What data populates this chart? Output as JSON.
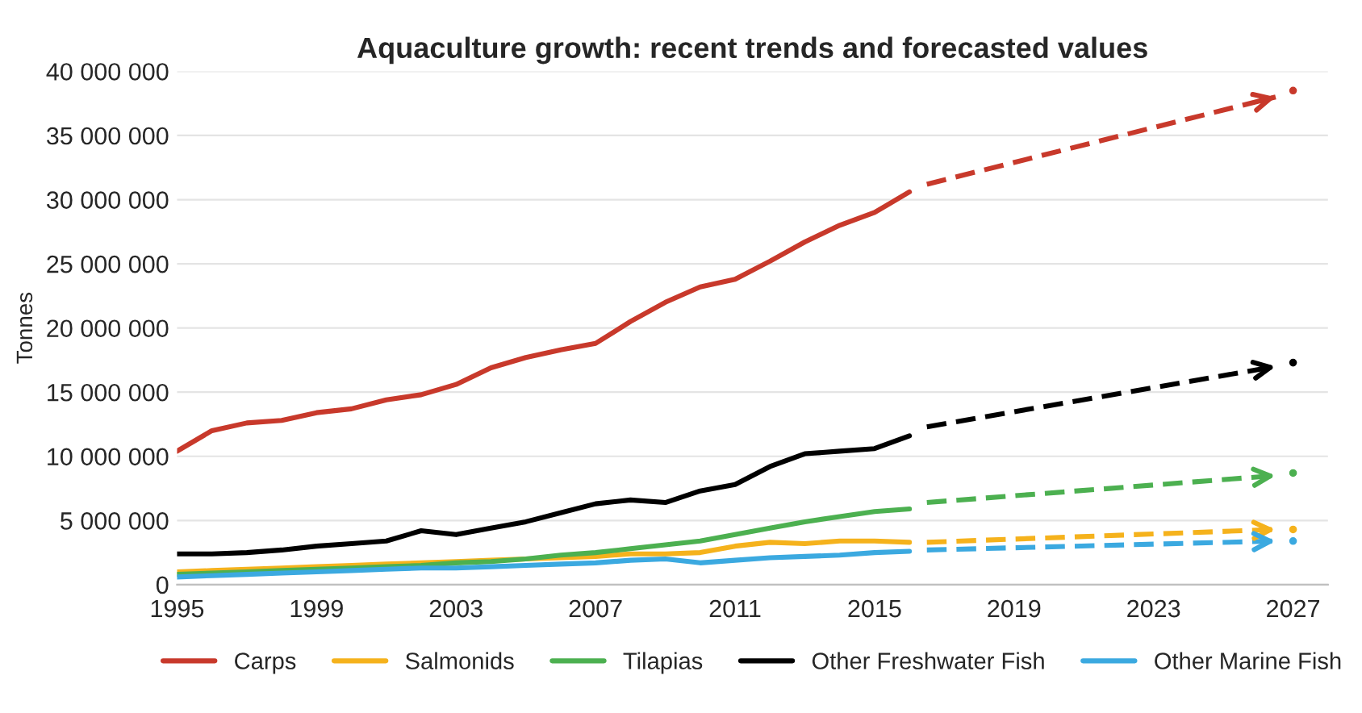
{
  "chart_data": {
    "type": "line",
    "title": "Aquaculture growth: recent trends and forecasted values",
    "ylabel": "Tonnes",
    "x": [
      1995,
      1996,
      1997,
      1998,
      1999,
      2000,
      2001,
      2002,
      2003,
      2004,
      2005,
      2006,
      2007,
      2008,
      2009,
      2010,
      2011,
      2012,
      2013,
      2014,
      2015,
      2016
    ],
    "series": [
      {
        "name": "Carps",
        "color": "#c8392b",
        "values": [
          10400000,
          12000000,
          12600000,
          12800000,
          13400000,
          13700000,
          14400000,
          14800000,
          15600000,
          16900000,
          17700000,
          18300000,
          18800000,
          20500000,
          22000000,
          23200000,
          23800000,
          25200000,
          26700000,
          28000000,
          29000000,
          30600000
        ]
      },
      {
        "name": "Salmonids",
        "color": "#f5b21c",
        "values": [
          1000000,
          1100000,
          1200000,
          1300000,
          1400000,
          1500000,
          1600000,
          1700000,
          1800000,
          1900000,
          2000000,
          2100000,
          2200000,
          2400000,
          2400000,
          2500000,
          3000000,
          3300000,
          3200000,
          3400000,
          3400000,
          3300000
        ]
      },
      {
        "name": "Tilapias",
        "color": "#4cb050",
        "values": [
          800000,
          900000,
          1000000,
          1100000,
          1200000,
          1300000,
          1400000,
          1500000,
          1700000,
          1800000,
          2000000,
          2300000,
          2500000,
          2800000,
          3100000,
          3400000,
          3900000,
          4400000,
          4900000,
          5300000,
          5700000,
          5900000
        ]
      },
      {
        "name": "Other Freshwater Fish",
        "color": "#000000",
        "values": [
          2400000,
          2400000,
          2500000,
          2700000,
          3000000,
          3200000,
          3400000,
          4200000,
          3900000,
          4400000,
          4900000,
          5600000,
          6300000,
          6600000,
          6400000,
          7300000,
          7800000,
          9200000,
          10200000,
          10400000,
          10600000,
          11600000
        ]
      },
      {
        "name": "Other Marine Fish",
        "color": "#3ba9e0",
        "values": [
          600000,
          700000,
          800000,
          900000,
          1000000,
          1100000,
          1200000,
          1300000,
          1300000,
          1400000,
          1500000,
          1600000,
          1700000,
          1900000,
          2000000,
          1700000,
          1900000,
          2100000,
          2200000,
          2300000,
          2500000,
          2600000
        ]
      },
      {
        "color": "#c8392b",
        "x": [
          2016.5,
          2026.5
        ],
        "values": [
          31200000,
          38000000
        ],
        "line_style": "dashed"
      },
      {
        "color": "#f5b21c",
        "x": [
          2016.5,
          2026.5
        ],
        "values": [
          3300000,
          4300000
        ],
        "line_style": "dashed"
      },
      {
        "color": "#4cb050",
        "x": [
          2016.5,
          2026.5
        ],
        "values": [
          6400000,
          8500000
        ],
        "line_style": "dashed"
      },
      {
        "color": "#000000",
        "x": [
          2016.5,
          2026.5
        ],
        "values": [
          12300000,
          17000000
        ],
        "line_style": "dashed"
      },
      {
        "color": "#3ba9e0",
        "x": [
          2016.5,
          2026.5
        ],
        "values": [
          2700000,
          3400000
        ],
        "line_style": "dashed"
      },
      {
        "type": "scatter",
        "color": "#c8392b",
        "x": [
          2027
        ],
        "values": [
          38500000
        ]
      },
      {
        "type": "scatter",
        "color": "#f5b21c",
        "x": [
          2027
        ],
        "values": [
          4300000
        ]
      },
      {
        "type": "scatter",
        "color": "#4cb050",
        "x": [
          2027
        ],
        "values": [
          8700000
        ]
      },
      {
        "type": "scatter",
        "color": "#000000",
        "x": [
          2027
        ],
        "values": [
          17300000
        ]
      },
      {
        "type": "scatter",
        "color": "#3ba9e0",
        "x": [
          2027
        ],
        "values": [
          3400000
        ]
      }
    ],
    "xlim": [
      1995,
      2028
    ],
    "xticks": [
      1995,
      1999,
      2003,
      2007,
      2011,
      2015,
      2019,
      2023,
      2027
    ],
    "ylim": [
      0,
      40000000
    ],
    "yticks": [
      {
        "value": 0,
        "label": "0"
      },
      {
        "value": 5000000,
        "label": "5 000 000"
      },
      {
        "value": 10000000,
        "label": "10 000 000"
      },
      {
        "value": 15000000,
        "label": "15 000 000"
      },
      {
        "value": 20000000,
        "label": "20 000 000"
      },
      {
        "value": 25000000,
        "label": "25 000 000"
      },
      {
        "value": 30000000,
        "label": "30 000 000"
      },
      {
        "value": 35000000,
        "label": "35 000 000"
      },
      {
        "value": 40000000,
        "label": "40 000 000"
      }
    ],
    "grid": "y",
    "legend": "bottom",
    "marker": "none",
    "line_style": "solid"
  }
}
